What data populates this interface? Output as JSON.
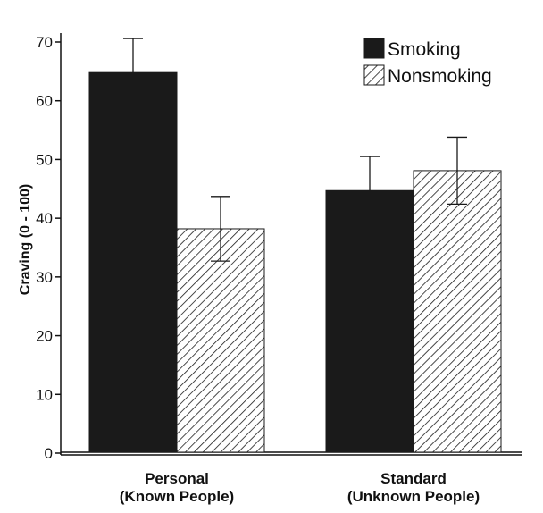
{
  "chart_data": {
    "type": "bar",
    "title": "",
    "xlabel": "",
    "ylabel": "Craving (0 - 100)",
    "ylim": [
      0,
      70
    ],
    "yticks": [
      0,
      10,
      20,
      30,
      40,
      50,
      60,
      70
    ],
    "categories": [
      [
        "Personal",
        "(Known People)"
      ],
      [
        "Standard",
        "(Unknown People)"
      ]
    ],
    "series": [
      {
        "name": "Smoking",
        "values": [
          64.8,
          44.7
        ],
        "errors": [
          5.8,
          5.8
        ],
        "fill": "solid",
        "color": "#1a1a1a"
      },
      {
        "name": "Nonsmoking",
        "values": [
          38.2,
          48.1
        ],
        "errors": [
          5.5,
          5.7
        ],
        "fill": "hatched",
        "color": "#1a1a1a"
      }
    ],
    "legend_position": "top-right",
    "grid": false
  }
}
